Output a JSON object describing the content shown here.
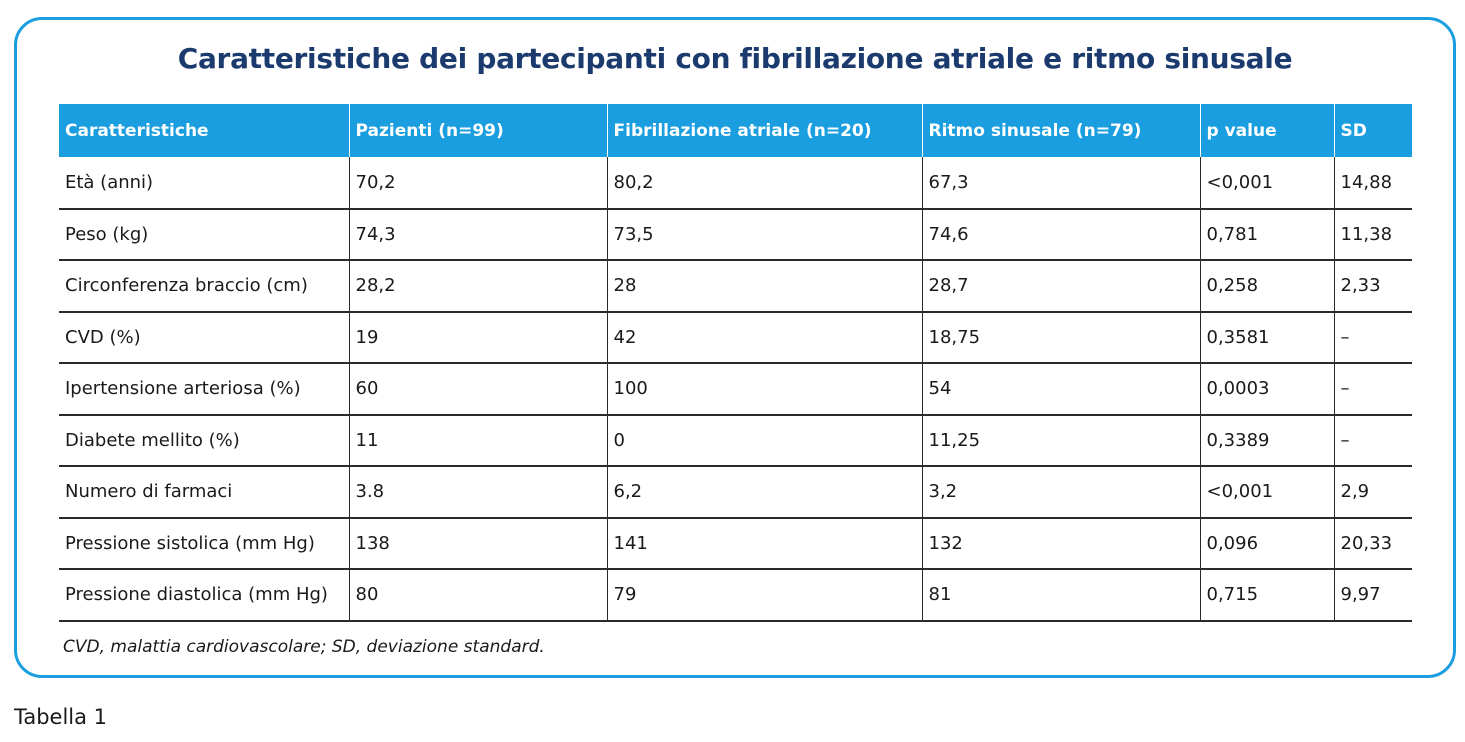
{
  "title": "Caratteristiche dei partecipanti con fibrillazione atriale e ritmo sinusale",
  "table": {
    "headers": [
      "Caratteristiche",
      "Pazienti (n=99)",
      "Fibrillazione atriale (n=20)",
      "Ritmo sinusale (n=79)",
      "p value",
      "SD"
    ],
    "rows": [
      [
        "Età (anni)",
        "70,2",
        "80,2",
        "67,3",
        "<0,001",
        "14,88"
      ],
      [
        "Peso (kg)",
        "74,3",
        "73,5",
        "74,6",
        "0,781",
        "11,38"
      ],
      [
        "Circonferenza braccio (cm)",
        "28,2",
        "28",
        "28,7",
        "0,258",
        "2,33"
      ],
      [
        "CVD (%)",
        "19",
        "42",
        "18,75",
        "0,3581",
        "–"
      ],
      [
        "Ipertensione arteriosa (%)",
        "60",
        "100",
        "54",
        "0,0003",
        "–"
      ],
      [
        "Diabete mellito (%)",
        "11",
        "0",
        "11,25",
        "0,3389",
        "–"
      ],
      [
        "Numero di farmaci",
        "3.8",
        "6,2",
        "3,2",
        "<0,001",
        "2,9"
      ],
      [
        "Pressione sistolica (mm Hg)",
        "138",
        "141",
        "132",
        "0,096",
        "20,33"
      ],
      [
        "Pressione diastolica (mm Hg)",
        "80",
        "79",
        "81",
        "0,715",
        "9,97"
      ]
    ]
  },
  "footnote": "CVD, malattia cardiovascolare; SD, deviazione standard.",
  "caption": "Tabella 1",
  "colors": {
    "header_bg": "#1a9ee0",
    "title": "#1b3a6e",
    "border": "#1a9ee0"
  }
}
